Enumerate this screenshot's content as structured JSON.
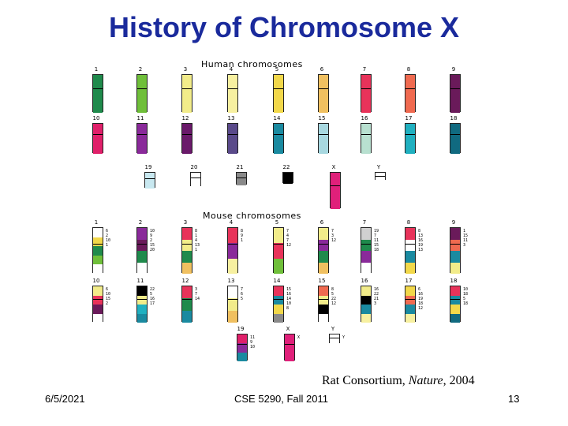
{
  "slide": {
    "title": "History of Chromosome X",
    "citation": {
      "prefix": "Rat Consortium, ",
      "journal": "Nature",
      "suffix": ", 2004"
    },
    "footer": {
      "date": "6/5/2021",
      "course": "CSE 5290, Fall 2011",
      "page": "13"
    }
  },
  "figure": {
    "human_title": "Human chromosomes",
    "mouse_title": "Mouse chromosomes",
    "human": [
      {
        "label": "1",
        "color": "#1f8a4c"
      },
      {
        "label": "2",
        "color": "#6fbf3a"
      },
      {
        "label": "3",
        "color": "#f2ec8a"
      },
      {
        "label": "4",
        "color": "#f7f0a0"
      },
      {
        "label": "5",
        "color": "#f2d84a"
      },
      {
        "label": "6",
        "color": "#f0c060"
      },
      {
        "label": "7",
        "color": "#e8335a"
      },
      {
        "label": "8",
        "color": "#f06a50"
      },
      {
        "label": "9",
        "color": "#6a1a5a"
      },
      {
        "label": "10",
        "color": "#e0206a"
      },
      {
        "label": "11",
        "color": "#8a2a9a"
      },
      {
        "label": "12",
        "color": "#6a1a6a"
      },
      {
        "label": "13",
        "color": "#5a4a8a"
      },
      {
        "label": "14",
        "color": "#1a8aa0"
      },
      {
        "label": "15",
        "color": "#a8d8e0"
      },
      {
        "label": "16",
        "color": "#b8e0d0"
      },
      {
        "label": "17",
        "color": "#20b0c0"
      },
      {
        "label": "18",
        "color": "#106a80"
      },
      {
        "label": "19",
        "color": "#c8e8f0"
      },
      {
        "label": "20",
        "color": "#ffffff"
      },
      {
        "label": "21",
        "color": "#8a8a8a"
      },
      {
        "label": "22",
        "color": "#000000"
      },
      {
        "label": "X",
        "color": "#e0207a"
      },
      {
        "label": "Y",
        "color": "#ffffff"
      }
    ],
    "mouse": [
      {
        "label": "1",
        "colors": [
          "#ffffff",
          "#f2d84a",
          "#1f8a4c",
          "#6fbf3a",
          "#ffffff"
        ],
        "bands": [
          "6",
          "2",
          "10",
          "1"
        ]
      },
      {
        "label": "2",
        "colors": [
          "#8a2a9a",
          "#6a1a5a",
          "#1f8a4c",
          "#ffffff"
        ],
        "bands": [
          "10",
          "9",
          "2",
          "15",
          "20"
        ]
      },
      {
        "label": "3",
        "colors": [
          "#e8335a",
          "#f2ec8a",
          "#1f8a4c",
          "#f0c060"
        ],
        "bands": [
          "8",
          "1",
          "4",
          "13",
          "1"
        ]
      },
      {
        "label": "4",
        "colors": [
          "#e8335a",
          "#8a2a9a",
          "#f7f0a0"
        ],
        "bands": [
          "8",
          "9",
          "1"
        ]
      },
      {
        "label": "5",
        "colors": [
          "#f2ec8a",
          "#e8335a",
          "#6fbf3a"
        ],
        "bands": [
          "7",
          "4",
          "7",
          "12"
        ]
      },
      {
        "label": "6",
        "colors": [
          "#f2ec8a",
          "#8a2a9a",
          "#1f8a4c",
          "#f0c060"
        ],
        "bands": [
          "7",
          "3",
          "12"
        ]
      },
      {
        "label": "7",
        "colors": [
          "#d0d0d0",
          "#1f8a4c",
          "#8a2a9a",
          "#ffffff"
        ],
        "bands": [
          "19",
          "7",
          "11",
          "15",
          "18"
        ]
      },
      {
        "label": "8",
        "colors": [
          "#e8335a",
          "#ffffff",
          "#1a8aa0",
          "#f2d84a"
        ],
        "bands": [
          "8",
          "13",
          "16",
          "19",
          "13"
        ]
      },
      {
        "label": "9",
        "colors": [
          "#6a1a5a",
          "#f06a50",
          "#1a8aa0",
          "#f2ec8a"
        ],
        "bands": [
          "1",
          "15",
          "11",
          "3"
        ]
      },
      {
        "label": "10",
        "colors": [
          "#f2ec8a",
          "#e8335a",
          "#6a1a5a",
          "#ffffff"
        ],
        "bands": [
          "6",
          "10",
          "15",
          "2"
        ]
      },
      {
        "label": "11",
        "colors": [
          "#000000",
          "#f2ec8a",
          "#20b0c0",
          "#1a8aa0"
        ],
        "bands": [
          "22",
          "5",
          "16",
          "17"
        ]
      },
      {
        "label": "12",
        "colors": [
          "#e8335a",
          "#1f8a4c",
          "#1a8aa0"
        ],
        "bands": [
          "3",
          "7",
          "14"
        ]
      },
      {
        "label": "13",
        "colors": [
          "#ffffff",
          "#f2ec8a",
          "#f0c060"
        ],
        "bands": [
          "7",
          "6",
          "5"
        ]
      },
      {
        "label": "14",
        "colors": [
          "#e8335a",
          "#1a8aa0",
          "#f2d84a",
          "#8a8a8a"
        ],
        "bands": [
          "15",
          "16",
          "14",
          "10",
          "8"
        ]
      },
      {
        "label": "15",
        "colors": [
          "#f06a50",
          "#f2ec8a",
          "#000000",
          "#ffffff"
        ],
        "bands": [
          "8",
          "5",
          "22",
          "12"
        ]
      },
      {
        "label": "16",
        "colors": [
          "#f2ec8a",
          "#000000",
          "#1a8aa0",
          "#f7f0a0"
        ],
        "bands": [
          "16",
          "22",
          "21",
          "3"
        ]
      },
      {
        "label": "17",
        "colors": [
          "#f2d84a",
          "#f06a50",
          "#1a8aa0",
          "#f7f0a0"
        ],
        "bands": [
          "6",
          "16",
          "19",
          "18",
          "12"
        ]
      },
      {
        "label": "18",
        "colors": [
          "#e8335a",
          "#1a8aa0",
          "#f2d84a",
          "#106a80"
        ],
        "bands": [
          "10",
          "18",
          "5",
          "18"
        ]
      },
      {
        "label": "19",
        "colors": [
          "#e0206a",
          "#8a2a9a",
          "#1a8aa0"
        ],
        "bands": [
          "11",
          "9",
          "10"
        ]
      },
      {
        "label": "X",
        "colors": [
          "#e0207a"
        ],
        "bands": [
          "X"
        ]
      },
      {
        "label": "Y",
        "colors": [
          "#ffffff"
        ],
        "bands": [
          "Y"
        ]
      }
    ]
  }
}
